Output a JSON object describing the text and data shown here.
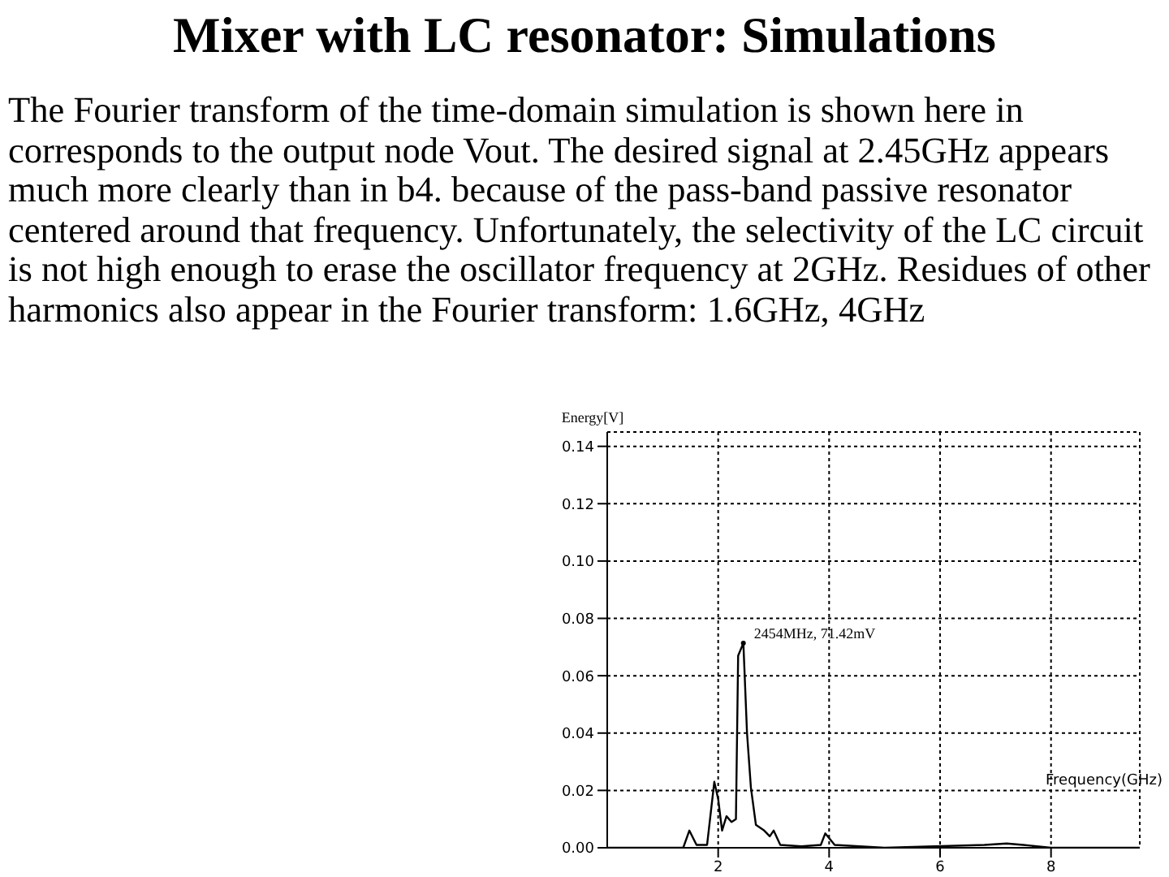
{
  "chart_data": {
    "type": "line",
    "title": "Mixer with LC resonator: Simulations",
    "subtitle": "The Fourier transform of the time-domain simulation is shown here in corresponds to the output node Vout. The desired signal at 2.45GHz appears much more clearly than in b4. because of the pass-band passive resonator centered around that frequency. Unfortunately, the selectivity of the LC circuit is not high enough to erase the oscillator frequency at 2GHz. Residues of other harmonics also appear in the Fourier transform: 1.6GHz, 4GHz",
    "xlabel": "Frequency(GHz)",
    "ylabel": "Energy[V]",
    "x": [
      0,
      1.37,
      1.48,
      1.61,
      1.8,
      1.93,
      2.0,
      2.07,
      2.15,
      2.24,
      2.32,
      2.36,
      2.454,
      2.52,
      2.59,
      2.68,
      2.83,
      2.93,
      3.0,
      3.12,
      3.5,
      3.85,
      3.93,
      4.1,
      5,
      6.8,
      7.2,
      7.5,
      8,
      9.6
    ],
    "series": [
      {
        "color": "#000000",
        "values": [
          0,
          0,
          0.006,
          0.001,
          0.001,
          0.023,
          0.017,
          0.006,
          0.011,
          0.009,
          0.01,
          0.067,
          0.0714,
          0.04,
          0.021,
          0.008,
          0.006,
          0.004,
          0.006,
          0.001,
          0.0005,
          0.001,
          0.005,
          0.001,
          0,
          0.001,
          0.0015,
          0.001,
          0,
          0
        ]
      }
    ],
    "xlim": [
      0,
      9.6
    ],
    "xticks": [
      2,
      4,
      6,
      8
    ],
    "ylim": [
      0,
      0.145
    ],
    "yticks": [
      {
        "value": 0,
        "label": "0.00"
      },
      {
        "value": 0.02,
        "label": "0.02"
      },
      {
        "value": 0.04,
        "label": "0.04"
      },
      {
        "value": 0.06,
        "label": "0.06"
      },
      {
        "value": 0.08,
        "label": "0.08"
      },
      {
        "value": 0.1,
        "label": "0.10"
      },
      {
        "value": 0.12,
        "label": "0.12"
      },
      {
        "value": 0.14,
        "label": "0.14"
      }
    ],
    "grid": true,
    "marker": "none",
    "line_style": "solid",
    "annotations": [
      {
        "text": "2454MHz, 71.42mV",
        "x": 2.454,
        "y": 0.0714
      }
    ]
  }
}
